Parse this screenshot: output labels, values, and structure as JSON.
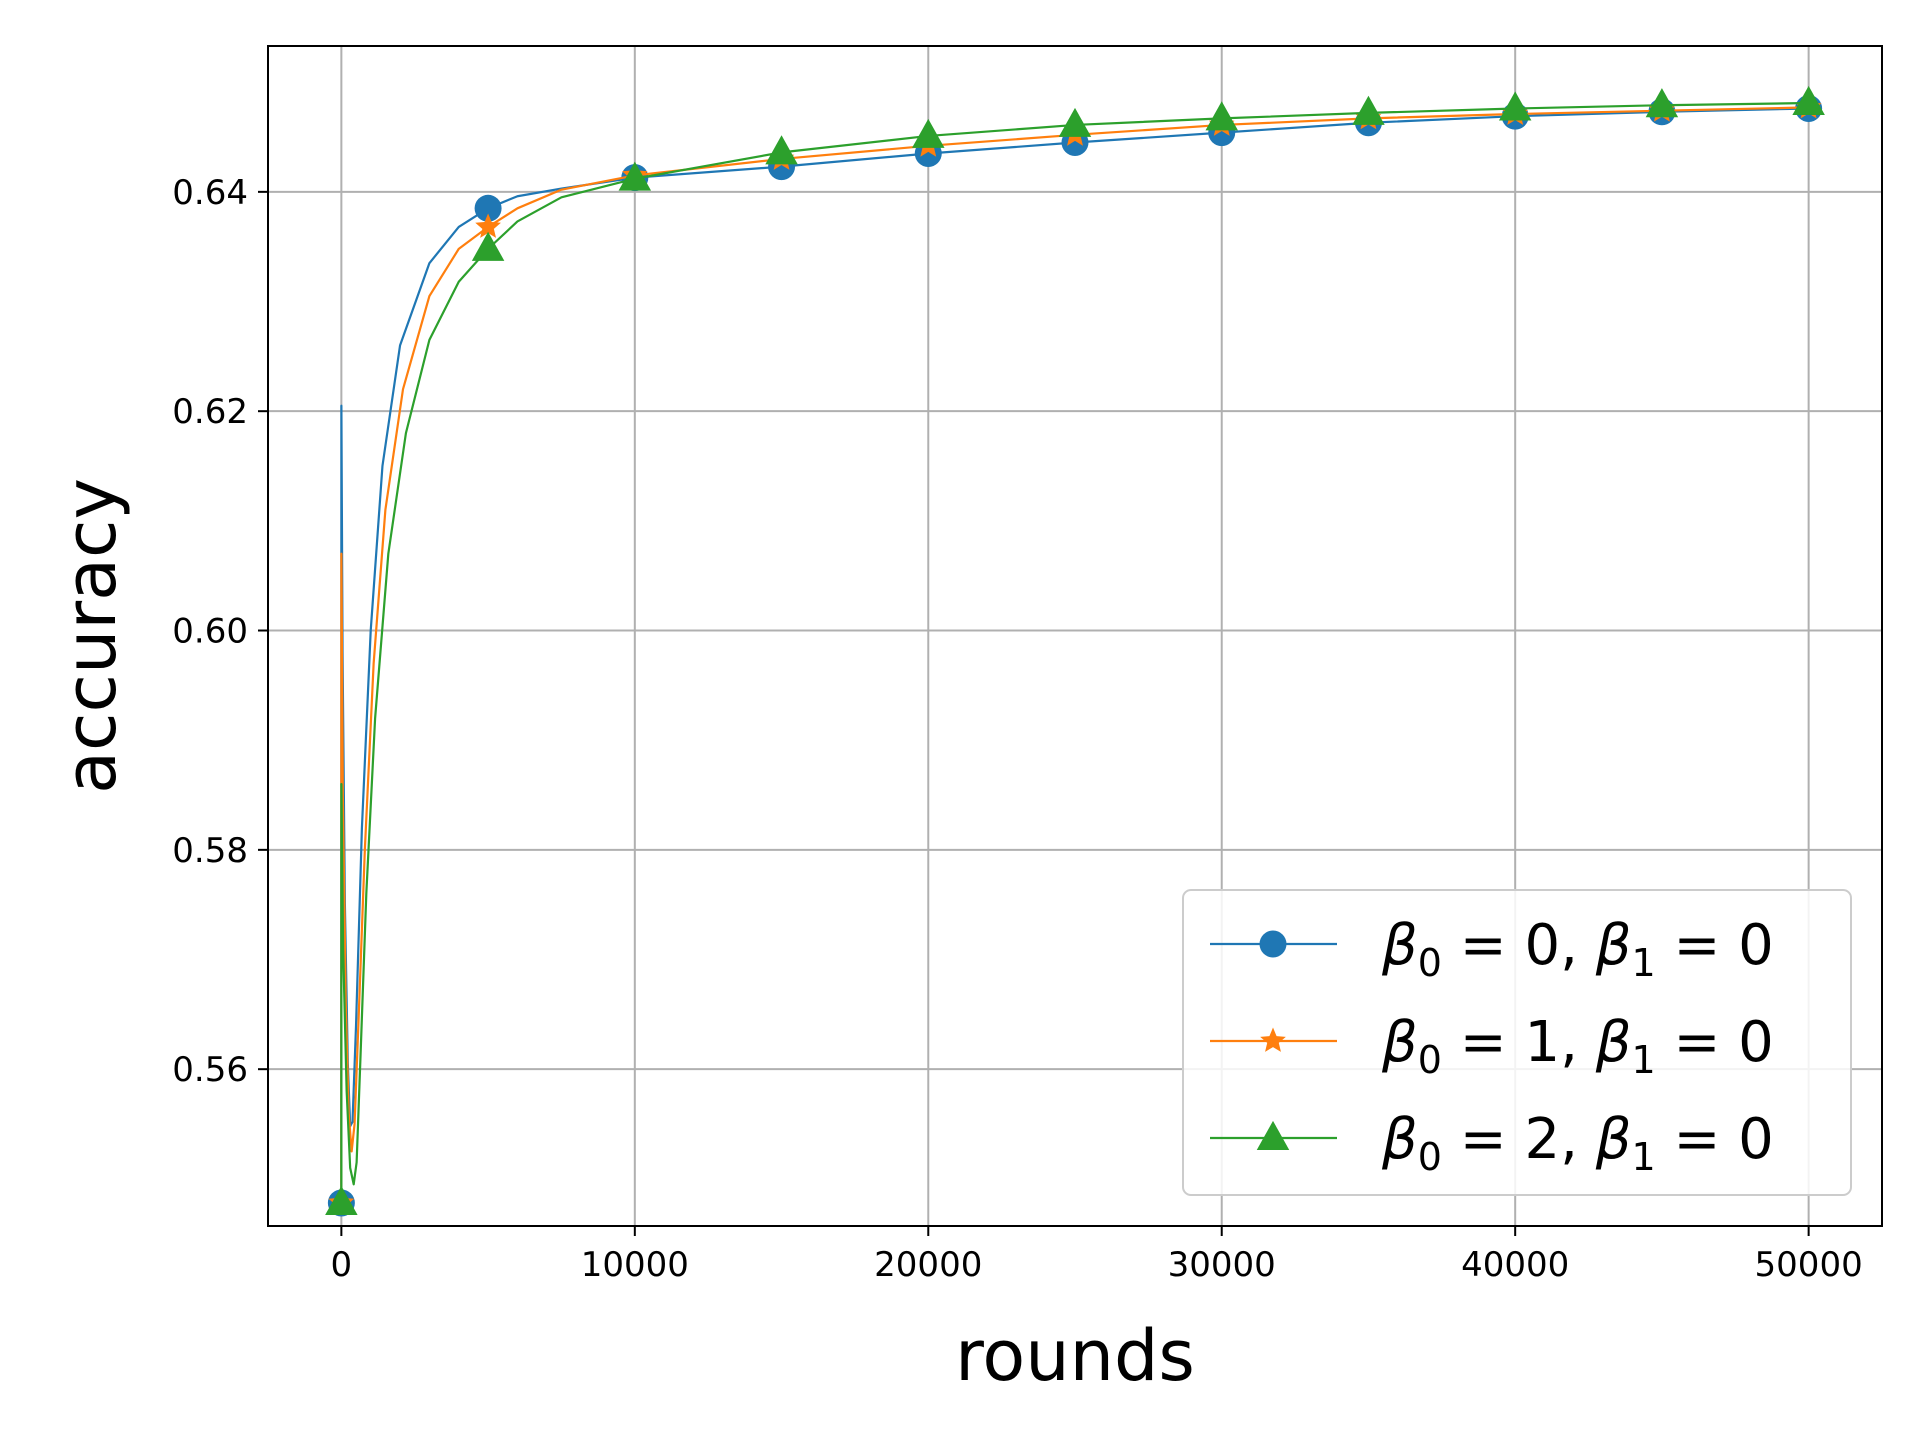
{
  "chart_data": {
    "type": "line",
    "title": "",
    "xlabel": "rounds",
    "ylabel": "accuracy",
    "xlim": [
      -2500,
      52500
    ],
    "ylim": [
      0.5457,
      0.6533
    ],
    "x_ticks": [
      0,
      10000,
      20000,
      30000,
      40000,
      50000
    ],
    "x_tick_labels": [
      "0",
      "10000",
      "20000",
      "30000",
      "40000",
      "50000"
    ],
    "y_ticks": [
      0.56,
      0.58,
      0.6,
      0.62,
      0.64
    ],
    "y_tick_labels": [
      "0.56",
      "0.58",
      "0.60",
      "0.62",
      "0.64"
    ],
    "grid": true,
    "legend_position": "lower right",
    "marker_x": [
      0,
      5000,
      10000,
      15000,
      20000,
      25000,
      30000,
      35000,
      40000,
      45000,
      50000
    ],
    "series": [
      {
        "name": "β0 = 0, β1 = 0",
        "legend_parts": {
          "b0_sym": "β",
          "b0_sub": "0",
          "b0_val": " = 0, ",
          "b1_sym": "β",
          "b1_sub": "1",
          "b1_val": " = 0"
        },
        "color": "#1f77b4",
        "marker": "circle",
        "curve": [
          [
            0,
            0.5478
          ],
          [
            1,
            0.6205
          ],
          [
            40,
            0.598
          ],
          [
            120,
            0.575
          ],
          [
            220,
            0.5605
          ],
          [
            300,
            0.5548
          ],
          [
            380,
            0.5552
          ],
          [
            500,
            0.564
          ],
          [
            700,
            0.582
          ],
          [
            1000,
            0.6
          ],
          [
            1400,
            0.615
          ],
          [
            2000,
            0.626
          ],
          [
            3000,
            0.6335
          ],
          [
            4000,
            0.6368
          ],
          [
            5000,
            0.6385
          ],
          [
            6000,
            0.6396
          ],
          [
            7500,
            0.6403
          ],
          [
            10000,
            0.6413
          ],
          [
            15000,
            0.6423
          ],
          [
            20000,
            0.6435
          ],
          [
            25000,
            0.6445
          ],
          [
            30000,
            0.6454
          ],
          [
            35000,
            0.6463
          ],
          [
            40000,
            0.6469
          ],
          [
            45000,
            0.6473
          ],
          [
            50000,
            0.6476
          ]
        ],
        "markers": [
          0.5478,
          0.6385,
          0.6413,
          0.6423,
          0.6435,
          0.6445,
          0.6454,
          0.6463,
          0.6469,
          0.6473,
          0.6476
        ]
      },
      {
        "name": "β0 = 1, β1 = 0",
        "legend_parts": {
          "b0_sym": "β",
          "b0_sub": "0",
          "b0_val": " = 1, ",
          "b1_sym": "β",
          "b1_sub": "1",
          "b1_val": " = 0"
        },
        "color": "#ff7f0e",
        "marker": "star",
        "curve": [
          [
            0,
            0.5478
          ],
          [
            1,
            0.607
          ],
          [
            50,
            0.585
          ],
          [
            150,
            0.566
          ],
          [
            250,
            0.556
          ],
          [
            350,
            0.5525
          ],
          [
            450,
            0.555
          ],
          [
            600,
            0.5655
          ],
          [
            800,
            0.58
          ],
          [
            1100,
            0.597
          ],
          [
            1500,
            0.611
          ],
          [
            2100,
            0.622
          ],
          [
            3000,
            0.6305
          ],
          [
            4000,
            0.6348
          ],
          [
            5000,
            0.6368
          ],
          [
            6000,
            0.6385
          ],
          [
            7500,
            0.6402
          ],
          [
            10000,
            0.6415
          ],
          [
            15000,
            0.643
          ],
          [
            20000,
            0.6442
          ],
          [
            25000,
            0.6452
          ],
          [
            30000,
            0.6461
          ],
          [
            35000,
            0.6467
          ],
          [
            40000,
            0.6471
          ],
          [
            45000,
            0.6474
          ],
          [
            50000,
            0.6477
          ]
        ],
        "markers": [
          0.5478,
          0.6368,
          0.6415,
          0.643,
          0.6442,
          0.6452,
          0.6461,
          0.6467,
          0.6471,
          0.6474,
          0.6477
        ]
      },
      {
        "name": "β0 = 2, β1 = 0",
        "legend_parts": {
          "b0_sym": "β",
          "b0_sub": "0",
          "b0_val": " = 2, ",
          "b1_sym": "β",
          "b1_sub": "1",
          "b1_val": " = 0"
        },
        "color": "#2ca02c",
        "marker": "triangle",
        "curve": [
          [
            0,
            0.5478
          ],
          [
            1,
            0.586
          ],
          [
            60,
            0.571
          ],
          [
            180,
            0.558
          ],
          [
            300,
            0.551
          ],
          [
            420,
            0.5495
          ],
          [
            520,
            0.5515
          ],
          [
            650,
            0.561
          ],
          [
            850,
            0.576
          ],
          [
            1150,
            0.592
          ],
          [
            1600,
            0.607
          ],
          [
            2200,
            0.618
          ],
          [
            3000,
            0.6265
          ],
          [
            4000,
            0.6318
          ],
          [
            5000,
            0.6348
          ],
          [
            6000,
            0.6373
          ],
          [
            7500,
            0.6395
          ],
          [
            10000,
            0.6412
          ],
          [
            15000,
            0.6436
          ],
          [
            20000,
            0.6451
          ],
          [
            25000,
            0.6461
          ],
          [
            30000,
            0.6467
          ],
          [
            35000,
            0.6472
          ],
          [
            40000,
            0.6476
          ],
          [
            45000,
            0.6479
          ],
          [
            50000,
            0.6481
          ]
        ],
        "markers": [
          0.5478,
          0.6348,
          0.6412,
          0.6436,
          0.6451,
          0.6461,
          0.6467,
          0.6472,
          0.6476,
          0.6479,
          0.6481
        ]
      }
    ]
  }
}
